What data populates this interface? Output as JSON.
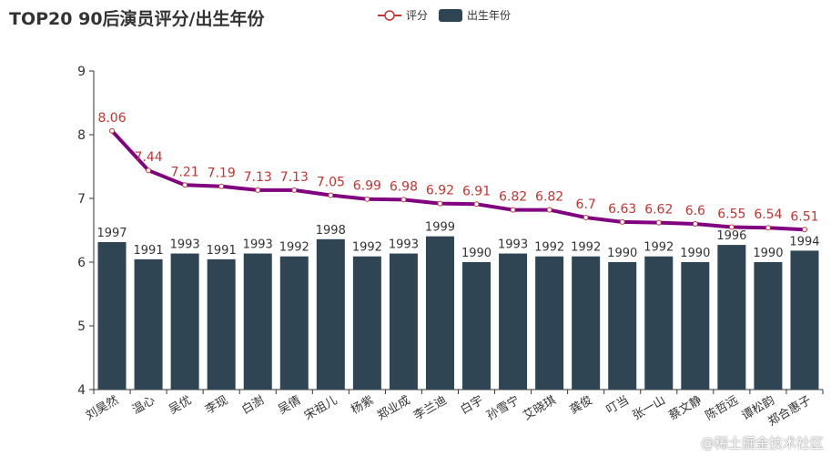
{
  "chart_data": {
    "type": "bar+line",
    "title": "TOP20 90后演员评分/出生年份",
    "legend": [
      {
        "name": "评分",
        "kind": "line",
        "color": "#c23531"
      },
      {
        "name": "出生年份",
        "kind": "bar",
        "color": "#2f4554"
      }
    ],
    "categories": [
      "刘昊然",
      "温心",
      "吴优",
      "李现",
      "白澍",
      "吴倩",
      "宋祖儿",
      "杨紫",
      "郑业成",
      "李兰迪",
      "白宇",
      "孙雪宁",
      "艾晓琪",
      "龚俊",
      "叮当",
      "张一山",
      "蔡文静",
      "陈哲远",
      "谭松韵",
      "郑合惠子"
    ],
    "series": [
      {
        "name": "评分",
        "type": "line",
        "color": "#800080",
        "label_color": "#c23531",
        "values": [
          8.06,
          7.44,
          7.21,
          7.19,
          7.13,
          7.13,
          7.05,
          6.99,
          6.98,
          6.92,
          6.91,
          6.82,
          6.82,
          6.7,
          6.63,
          6.62,
          6.6,
          6.55,
          6.54,
          6.51
        ]
      },
      {
        "name": "出生年份",
        "type": "bar",
        "color": "#2f4554",
        "values": [
          1997,
          1991,
          1993,
          1991,
          1993,
          1992,
          1998,
          1992,
          1993,
          1999,
          1990,
          1993,
          1992,
          1992,
          1990,
          1992,
          1990,
          1996,
          1990,
          1994
        ]
      }
    ],
    "yaxis": {
      "ticks": [
        4,
        5,
        6,
        7,
        8,
        9
      ],
      "range": [
        4,
        9
      ]
    },
    "bar_value_mapping": "bar height = 6 + (year - 1990) * 0.045 on the score axis"
  },
  "watermark": "@稀土掘金技术社区"
}
